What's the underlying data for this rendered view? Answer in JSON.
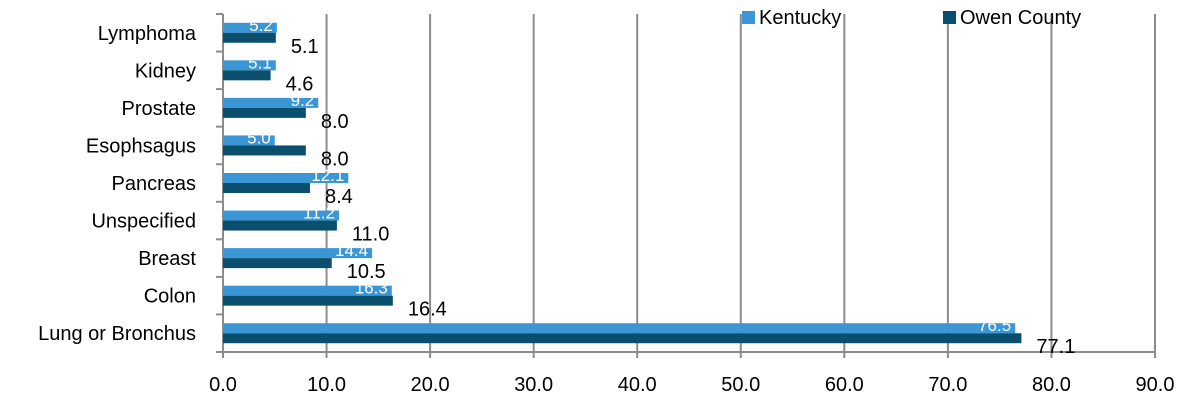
{
  "chart_data": {
    "type": "bar",
    "orientation": "horizontal",
    "categories": [
      "Lymphoma",
      "Kidney",
      "Prostate",
      "Esophsagus",
      "Pancreas",
      "Unspecified",
      "Breast",
      "Colon",
      "Lung or Bronchus"
    ],
    "series": [
      {
        "name": "Kentucky",
        "color": "#3a96d4",
        "values": [
          5.2,
          5.1,
          9.2,
          5.0,
          12.1,
          11.2,
          14.4,
          16.3,
          76.5
        ],
        "labels": [
          "5.2",
          "5.1",
          "9.2",
          "5.0",
          "12.1",
          "11.2",
          "14.4",
          "16.3",
          "76.5"
        ]
      },
      {
        "name": "Owen County",
        "color": "#0b4f6e",
        "values": [
          5.1,
          4.6,
          8.0,
          8.0,
          8.4,
          11.0,
          10.5,
          16.4,
          77.1
        ],
        "labels": [
          "5.1",
          "4.6",
          "8.0",
          "8.0",
          "8.4",
          "11.0",
          "10.5",
          "16.4",
          "77.1"
        ]
      }
    ],
    "xlim": [
      0,
      90
    ],
    "xticks": [
      "0.0",
      "10.0",
      "20.0",
      "30.0",
      "40.0",
      "50.0",
      "60.0",
      "70.0",
      "80.0",
      "90.0"
    ],
    "grid": true,
    "legend": "top-right",
    "title": "",
    "xlabel": "",
    "ylabel": ""
  }
}
